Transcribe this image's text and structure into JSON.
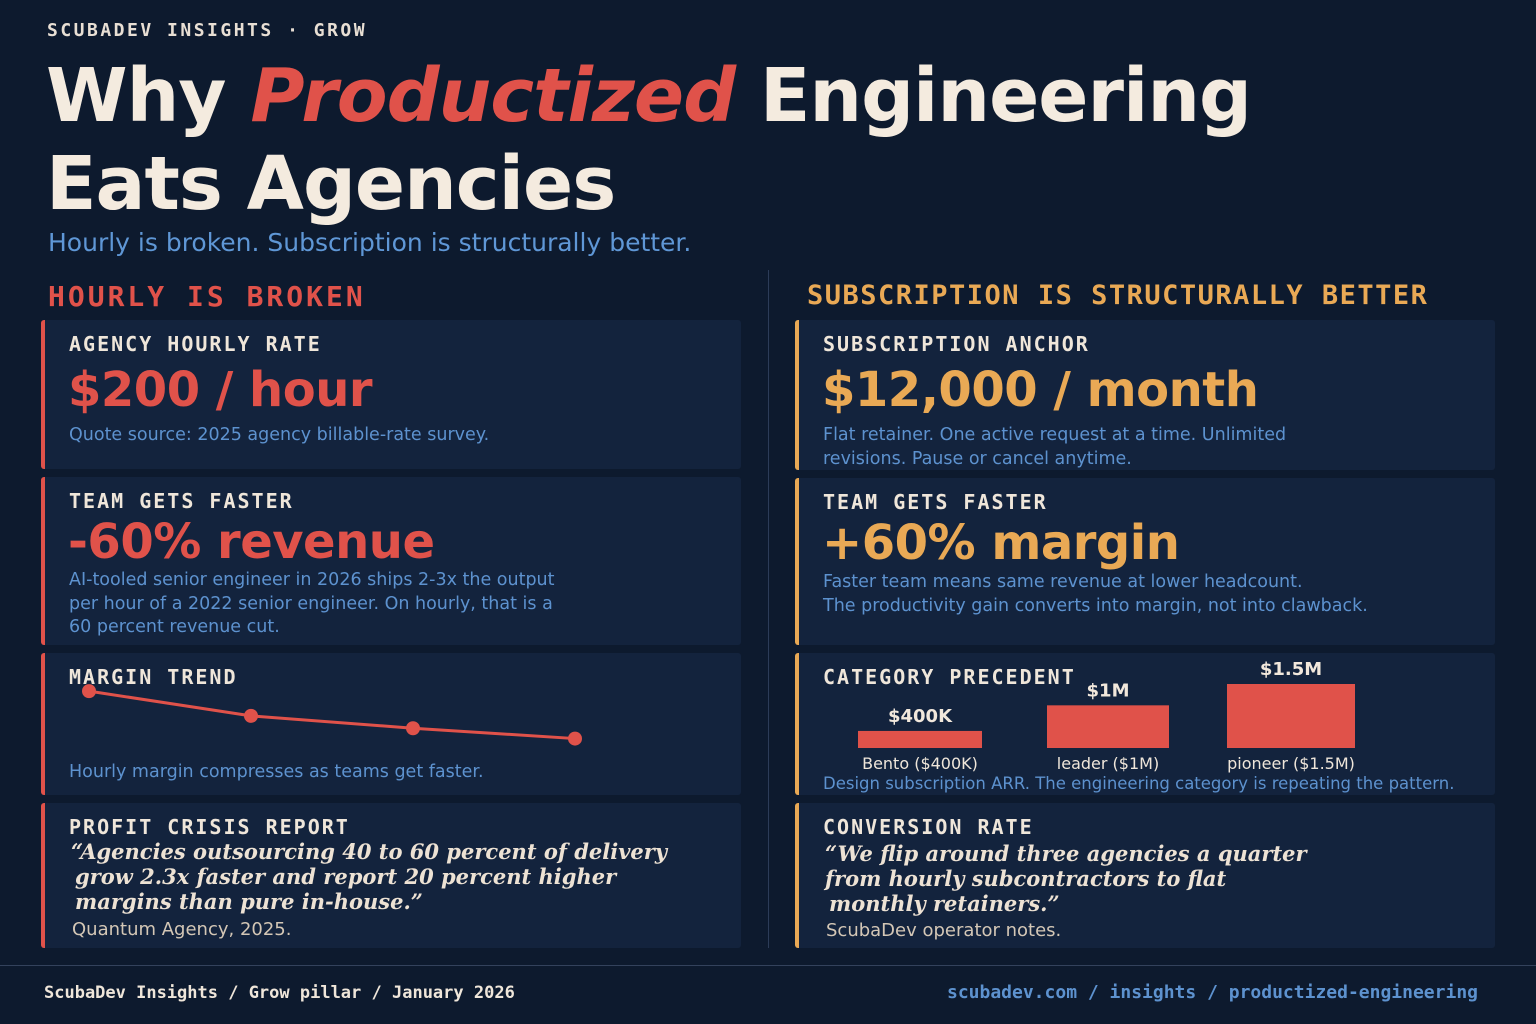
{
  "header": {
    "kicker": "SCUBADEV INSIGHTS · GROW",
    "title_part1": "Why ",
    "title_accent": "Productized",
    "title_part2": " Engineering",
    "title_line2": "Eats Agencies",
    "subtitle": "Hourly is broken. Subscription is structurally better."
  },
  "left_column": {
    "heading": "HOURLY IS BROKEN",
    "rate_card": {
      "label": "AGENCY HOURLY RATE",
      "value": "$200 / hour",
      "desc": "Quote source: 2025 agency billable-rate survey."
    },
    "faster_card": {
      "label": "TEAM GETS FASTER",
      "value": "-60% revenue",
      "desc_line1": "AI-tooled senior engineer in 2026 ships 2-3x the output",
      "desc_line2": "per hour of a 2022 senior engineer. On hourly, that is a",
      "desc_line3": "60 percent revenue cut."
    },
    "margin_card": {
      "label": "MARGIN TREND",
      "desc": "Hourly margin compresses as teams get faster."
    },
    "profit_card": {
      "label": "PROFIT CRISIS REPORT",
      "quote_line1": "“Agencies outsourcing 40 to 60 percent of delivery",
      "quote_line2": "grow 2.3x faster and report 20 percent higher",
      "quote_line3": "margins than pure in-house.”",
      "attribution": "Quantum Agency, 2025."
    }
  },
  "right_column": {
    "heading": "SUBSCRIPTION IS STRUCTURALLY BETTER",
    "anchor_card": {
      "label": "SUBSCRIPTION ANCHOR",
      "value": "$12,000 / month",
      "desc_line1": "Flat retainer. One active request at a time. Unlimited",
      "desc_line2": "revisions. Pause or cancel anytime."
    },
    "faster_card": {
      "label": "TEAM GETS FASTER",
      "value": "+60% margin",
      "desc_line1": "Faster team means same revenue at lower headcount.",
      "desc_line2": "The productivity gain converts into margin, not into clawback."
    },
    "precedent_card": {
      "label": "CATEGORY PRECEDENT",
      "desc": "Design subscription ARR. The engineering category is repeating the pattern."
    },
    "conversion_card": {
      "label": "CONVERSION RATE",
      "quote_line1": "“We flip around three agencies a quarter",
      "quote_line2": "from hourly subcontractors to flat",
      "quote_line3": "monthly retainers.”",
      "attribution": "ScubaDev operator notes."
    }
  },
  "chart_data": [
    {
      "type": "line",
      "title": "MARGIN TREND",
      "x": [
        1,
        2,
        3,
        4
      ],
      "series": [
        {
          "values": [
            100,
            88,
            82,
            77
          ]
        }
      ],
      "ylim": [
        70,
        102
      ],
      "grid": false,
      "color": "#e0524a"
    },
    {
      "type": "bar",
      "title": "CATEGORY PRECEDENT",
      "categories": [
        "Bento ($400K)",
        "leader ($1M)",
        "pioneer ($1.5M)"
      ],
      "values": [
        400000,
        1000000,
        1500000
      ],
      "data_labels": [
        "$400K",
        "$1M",
        "$1.5M"
      ],
      "grid": false,
      "color": "#e0524a"
    }
  ],
  "footer": {
    "left": "ScubaDev Insights / Grow pillar / January 2026",
    "right": "scubadev.com / insights / productized-engineering"
  },
  "colors": {
    "background": "#0d1a2e",
    "card": "#13233d",
    "red_accent": "#e0524a",
    "gold_accent": "#e9a955",
    "blue_text": "#5d92cf"
  }
}
